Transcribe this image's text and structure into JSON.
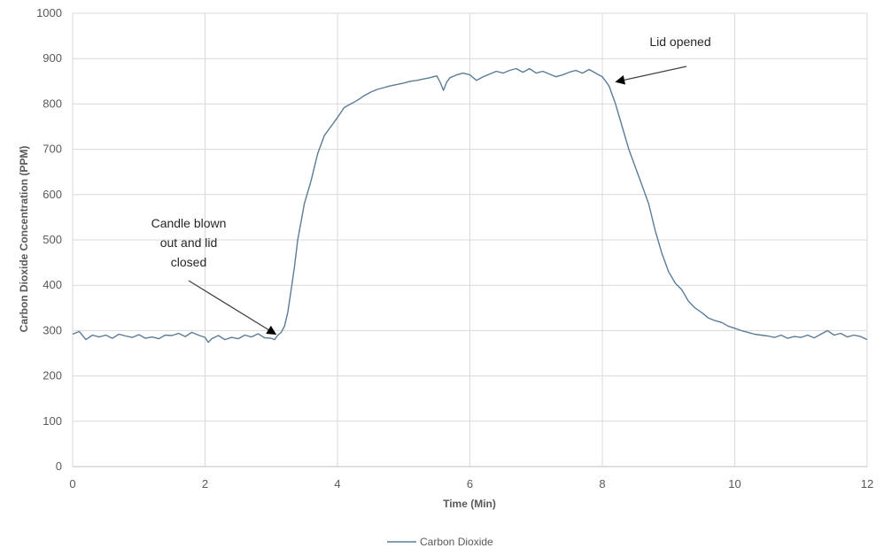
{
  "chart_data": {
    "type": "line",
    "title": "",
    "xlabel": "Time (Min)",
    "ylabel": "Carbon Dioxide Concentration (PPM)",
    "xlim": [
      0,
      12
    ],
    "ylim": [
      0,
      1000
    ],
    "x_ticks": [
      0,
      2,
      4,
      6,
      8,
      10,
      12
    ],
    "y_ticks": [
      0,
      100,
      200,
      300,
      400,
      500,
      600,
      700,
      800,
      900,
      1000
    ],
    "grid": true,
    "legend_position": "bottom",
    "series": [
      {
        "name": "Carbon Dioxide",
        "color": "#5b7c99",
        "points": [
          [
            0.0,
            292
          ],
          [
            0.1,
            298
          ],
          [
            0.2,
            280
          ],
          [
            0.3,
            290
          ],
          [
            0.4,
            286
          ],
          [
            0.5,
            290
          ],
          [
            0.6,
            283
          ],
          [
            0.7,
            292
          ],
          [
            0.8,
            288
          ],
          [
            0.9,
            285
          ],
          [
            1.0,
            291
          ],
          [
            1.1,
            283
          ],
          [
            1.2,
            286
          ],
          [
            1.3,
            282
          ],
          [
            1.4,
            290
          ],
          [
            1.5,
            289
          ],
          [
            1.6,
            294
          ],
          [
            1.7,
            287
          ],
          [
            1.8,
            296
          ],
          [
            1.9,
            290
          ],
          [
            2.0,
            285
          ],
          [
            2.05,
            274
          ],
          [
            2.1,
            282
          ],
          [
            2.2,
            289
          ],
          [
            2.3,
            280
          ],
          [
            2.4,
            285
          ],
          [
            2.5,
            282
          ],
          [
            2.6,
            290
          ],
          [
            2.7,
            286
          ],
          [
            2.8,
            293
          ],
          [
            2.9,
            284
          ],
          [
            3.0,
            283
          ],
          [
            3.05,
            280
          ],
          [
            3.1,
            290
          ],
          [
            3.15,
            296
          ],
          [
            3.2,
            310
          ],
          [
            3.25,
            340
          ],
          [
            3.3,
            390
          ],
          [
            3.35,
            440
          ],
          [
            3.4,
            500
          ],
          [
            3.45,
            540
          ],
          [
            3.5,
            580
          ],
          [
            3.6,
            630
          ],
          [
            3.7,
            690
          ],
          [
            3.8,
            730
          ],
          [
            3.9,
            750
          ],
          [
            4.0,
            770
          ],
          [
            4.1,
            792
          ],
          [
            4.2,
            800
          ],
          [
            4.3,
            808
          ],
          [
            4.4,
            818
          ],
          [
            4.5,
            826
          ],
          [
            4.6,
            832
          ],
          [
            4.7,
            836
          ],
          [
            4.8,
            840
          ],
          [
            4.9,
            843
          ],
          [
            5.0,
            846
          ],
          [
            5.1,
            850
          ],
          [
            5.2,
            852
          ],
          [
            5.3,
            855
          ],
          [
            5.4,
            858
          ],
          [
            5.5,
            862
          ],
          [
            5.55,
            848
          ],
          [
            5.6,
            830
          ],
          [
            5.65,
            848
          ],
          [
            5.7,
            858
          ],
          [
            5.8,
            864
          ],
          [
            5.9,
            868
          ],
          [
            6.0,
            864
          ],
          [
            6.1,
            852
          ],
          [
            6.2,
            860
          ],
          [
            6.3,
            866
          ],
          [
            6.4,
            872
          ],
          [
            6.5,
            868
          ],
          [
            6.6,
            874
          ],
          [
            6.7,
            878
          ],
          [
            6.8,
            870
          ],
          [
            6.9,
            878
          ],
          [
            7.0,
            868
          ],
          [
            7.1,
            872
          ],
          [
            7.2,
            866
          ],
          [
            7.3,
            860
          ],
          [
            7.4,
            864
          ],
          [
            7.5,
            870
          ],
          [
            7.6,
            874
          ],
          [
            7.7,
            868
          ],
          [
            7.8,
            876
          ],
          [
            7.9,
            868
          ],
          [
            8.0,
            860
          ],
          [
            8.1,
            840
          ],
          [
            8.2,
            800
          ],
          [
            8.3,
            750
          ],
          [
            8.4,
            700
          ],
          [
            8.5,
            660
          ],
          [
            8.6,
            620
          ],
          [
            8.7,
            580
          ],
          [
            8.8,
            520
          ],
          [
            8.9,
            470
          ],
          [
            9.0,
            430
          ],
          [
            9.1,
            405
          ],
          [
            9.2,
            390
          ],
          [
            9.3,
            365
          ],
          [
            9.4,
            350
          ],
          [
            9.5,
            340
          ],
          [
            9.6,
            328
          ],
          [
            9.7,
            322
          ],
          [
            9.8,
            318
          ],
          [
            9.9,
            310
          ],
          [
            10.0,
            305
          ],
          [
            10.1,
            300
          ],
          [
            10.2,
            296
          ],
          [
            10.3,
            292
          ],
          [
            10.4,
            290
          ],
          [
            10.5,
            288
          ],
          [
            10.6,
            285
          ],
          [
            10.7,
            290
          ],
          [
            10.8,
            283
          ],
          [
            10.9,
            287
          ],
          [
            11.0,
            285
          ],
          [
            11.1,
            290
          ],
          [
            11.2,
            284
          ],
          [
            11.3,
            292
          ],
          [
            11.4,
            300
          ],
          [
            11.5,
            290
          ],
          [
            11.6,
            294
          ],
          [
            11.7,
            286
          ],
          [
            11.8,
            290
          ],
          [
            11.9,
            287
          ],
          [
            12.0,
            280
          ]
        ]
      }
    ],
    "annotations": [
      {
        "id": "candle",
        "lines": [
          "Candle blown",
          "out and lid",
          "closed"
        ],
        "target": [
          3.0,
          292
        ]
      },
      {
        "id": "lid",
        "lines": [
          "Lid opened"
        ],
        "target": [
          8.1,
          845
        ]
      }
    ]
  }
}
